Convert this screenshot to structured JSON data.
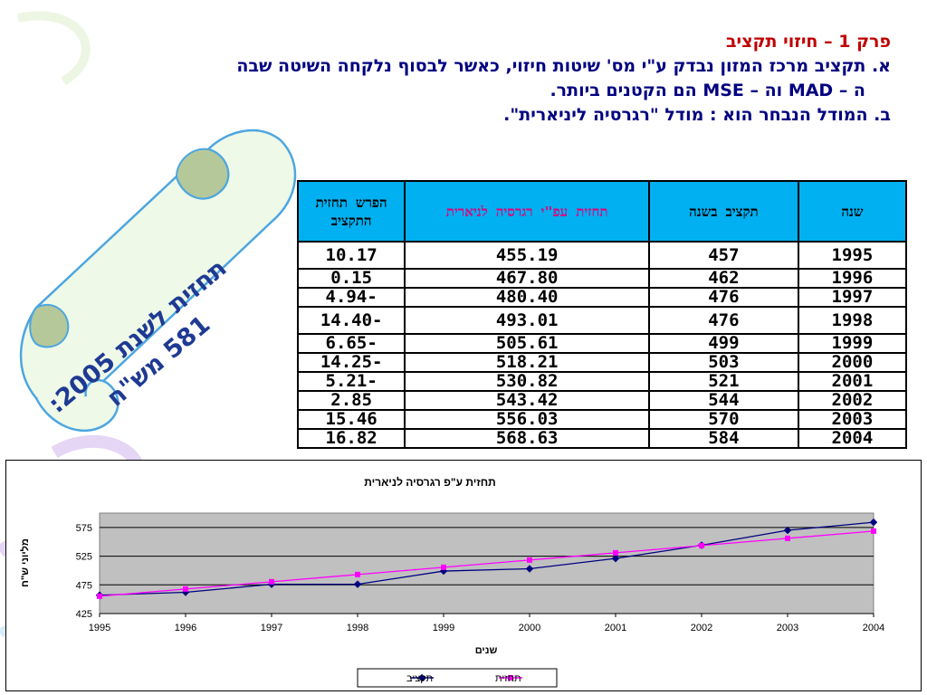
{
  "header": {
    "title": "פרק 1 – חיזוי תקציב",
    "line_a": "א. תקציב מרכז המזון נבדק ע\"י מס' שיטות חיזוי, כאשר לבסוף נלקחה השיטה שבה",
    "line_a2": "ה – MAD וה – MSE הם הקטנים ביותר.",
    "line_b": "ב. המודל הנבחר הוא : מודל \"רגרסיה ליניארית\"."
  },
  "scroll": {
    "line1": "תחזית לשנת 2005:",
    "line2": "581 מש\"ח"
  },
  "table": {
    "headers": {
      "year": "שנה",
      "budget": "תקציב בשנה",
      "forecast": "תחזית עפ\"י רגרסיה לניארית",
      "diff": "הפרש תחזית התקציב"
    },
    "rows": [
      {
        "year": "1995",
        "budget": "457",
        "forecast": "455.19",
        "diff": "10.17"
      },
      {
        "year": "1996",
        "budget": "462",
        "forecast": "467.80",
        "diff": "0.15"
      },
      {
        "year": "1997",
        "budget": "476",
        "forecast": "480.40",
        "diff": "-4.94"
      },
      {
        "year": "1998",
        "budget": "476",
        "forecast": "493.01",
        "diff": "-14.40"
      },
      {
        "year": "1999",
        "budget": "499",
        "forecast": "505.61",
        "diff": "-6.65"
      },
      {
        "year": "2000",
        "budget": "503",
        "forecast": "518.21",
        "diff": "-14.25"
      },
      {
        "year": "2001",
        "budget": "521",
        "forecast": "530.82",
        "diff": "-5.21"
      },
      {
        "year": "2002",
        "budget": "544",
        "forecast": "543.42",
        "diff": "2.85"
      },
      {
        "year": "2003",
        "budget": "570",
        "forecast": "556.03",
        "diff": "15.46"
      },
      {
        "year": "2004",
        "budget": "584",
        "forecast": "568.63",
        "diff": "16.82"
      }
    ]
  },
  "chart_data": {
    "type": "line",
    "title": "תחזית ע\"פ רגרסיה לניארית",
    "xlabel": "שנים",
    "ylabel": "מליוני ש\"ח",
    "x": [
      1995,
      1996,
      1997,
      1998,
      1999,
      2000,
      2001,
      2002,
      2003,
      2004
    ],
    "xlim": [
      1995,
      2004
    ],
    "ylim": [
      425,
      600
    ],
    "yticks": [
      425,
      475,
      525,
      575
    ],
    "grid": true,
    "legend": "bottom",
    "series": [
      {
        "name": "תקציב",
        "color": "#000080",
        "marker": "diamond",
        "values": [
          457,
          462,
          476,
          476,
          499,
          503,
          521,
          544,
          570,
          584
        ]
      },
      {
        "name": "תחזית",
        "color": "#ff00ff",
        "marker": "square",
        "values": [
          455.19,
          467.8,
          480.4,
          493.01,
          505.61,
          518.21,
          530.82,
          543.42,
          556.03,
          568.63
        ]
      }
    ]
  }
}
